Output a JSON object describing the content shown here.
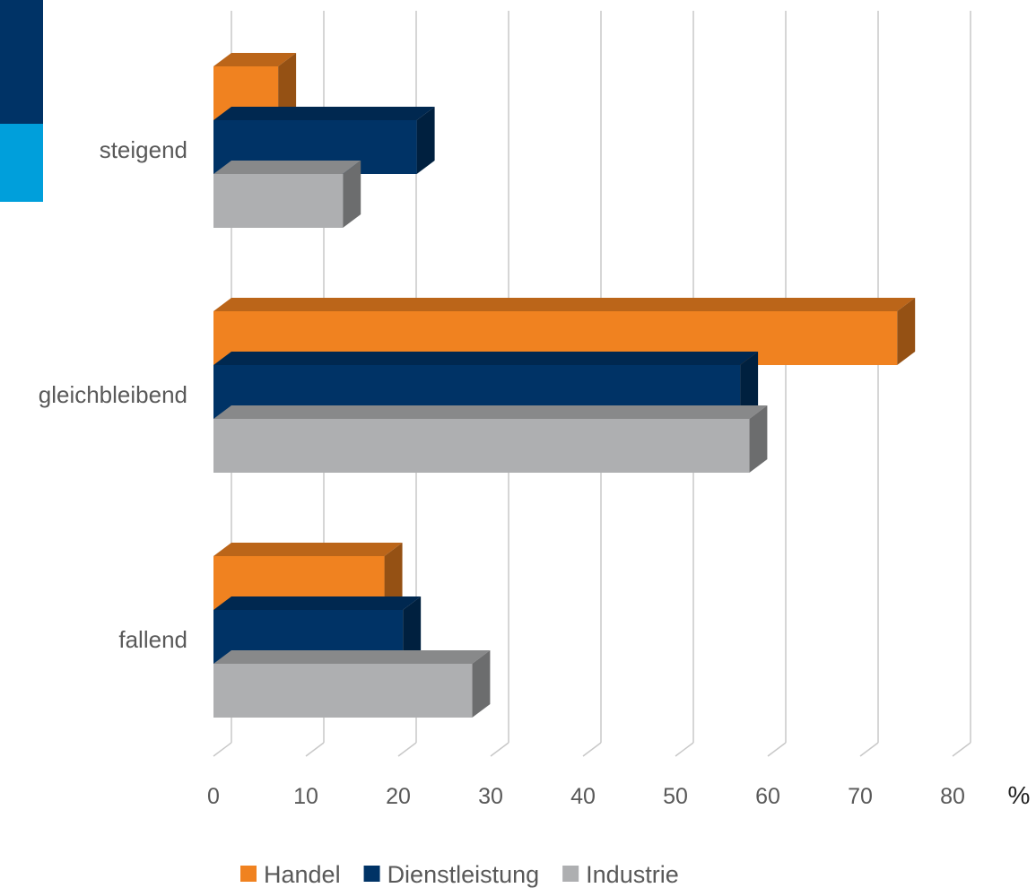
{
  "colors": {
    "accent_dark": "#003366",
    "accent_light": "#009fdb",
    "grid": "#c8c8c8",
    "text": "#595959"
  },
  "chart_data": {
    "type": "bar",
    "orientation": "horizontal",
    "style": "3d",
    "categories": [
      "steigend",
      "gleichbleibend",
      "fallend"
    ],
    "series": [
      {
        "name": "Handel",
        "color": "#f08220",
        "values": [
          7,
          74,
          18.5
        ]
      },
      {
        "name": "Dienstleistung",
        "color": "#003366",
        "values": [
          22,
          57,
          20.5
        ]
      },
      {
        "name": "Industrie",
        "color": "#aeafb1",
        "values": [
          14,
          58,
          28
        ]
      }
    ],
    "xlim": [
      0,
      80
    ],
    "xticks": [
      "0",
      "10",
      "20",
      "30",
      "40",
      "50",
      "60",
      "70",
      "80"
    ],
    "xunit": "%",
    "grid": true,
    "legend": "bottom"
  }
}
